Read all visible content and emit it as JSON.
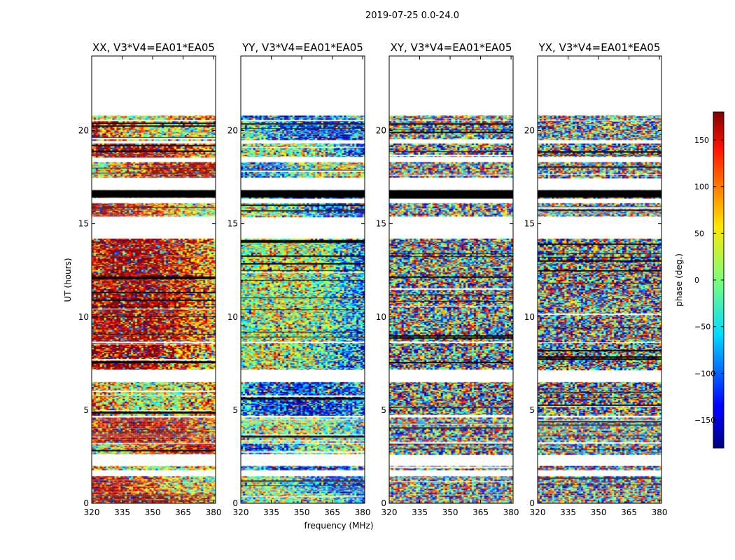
{
  "figure": {
    "suptitle": "2019-07-25 0.0-24.0"
  },
  "chart_data": {
    "type": "heatmap",
    "suptitle": "2019-07-25 0.0-24.0",
    "xlabel": "frequency (MHz)",
    "ylabel": "UT (hours)",
    "xlim": [
      320,
      381
    ],
    "ylim": [
      0,
      24
    ],
    "xticks": [
      320,
      335,
      350,
      365,
      380
    ],
    "yticks": [
      0,
      5,
      10,
      15,
      20
    ],
    "panels": [
      {
        "title": "XX, V3*V4=EA01*EA05",
        "style": "coherent"
      },
      {
        "title": "YY, V3*V4=EA01*EA05",
        "style": "coherent"
      },
      {
        "title": "XY, V3*V4=EA01*EA05",
        "style": "noise"
      },
      {
        "title": "YX, V3*V4=EA01*EA05",
        "style": "noise"
      }
    ],
    "data_blocks_hours": [
      [
        0.0,
        0.55
      ],
      [
        0.55,
        1.45
      ],
      [
        1.8,
        2.0
      ],
      [
        2.65,
        3.2
      ],
      [
        3.3,
        4.6
      ],
      [
        4.7,
        6.5
      ],
      [
        7.2,
        8.6
      ],
      [
        8.7,
        14.2
      ],
      [
        15.4,
        16.1
      ],
      [
        16.4,
        16.8
      ],
      [
        17.5,
        18.3
      ],
      [
        18.6,
        19.3
      ],
      [
        19.5,
        20.5
      ],
      [
        20.6,
        20.8
      ]
    ],
    "flagged_black_bands_hours": [
      [
        16.4,
        16.8
      ]
    ],
    "colorbar": {
      "label": "phase (deg.)",
      "range": [
        -180,
        180
      ],
      "ticks": [
        150,
        100,
        50,
        0,
        -50,
        -100,
        -150
      ],
      "tick_labels": [
        "150",
        "100",
        "50",
        "0",
        "−50",
        "−100",
        "−150"
      ],
      "colormap": "jet"
    }
  }
}
